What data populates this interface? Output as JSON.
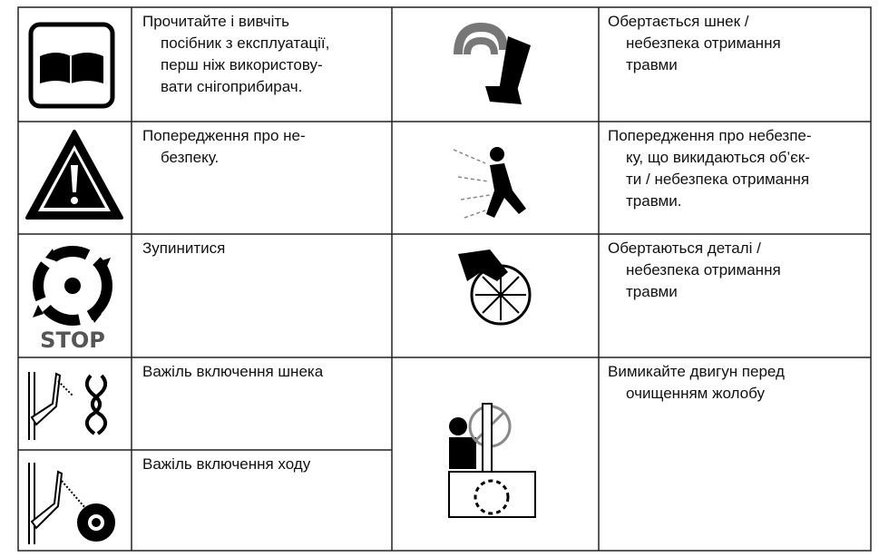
{
  "table": {
    "left_cells": [
      {
        "lines": [
          "Прочитайте і вивчіть",
          "посібник з експлуатації,",
          "перш ніж використову-",
          "вати снігоприбирач."
        ]
      },
      {
        "lines": [
          "Попередження про не-",
          "безпеку."
        ]
      },
      {
        "lines": [
          "Зупинитися"
        ]
      },
      {
        "lines": [
          "Важіль включення шнека"
        ]
      },
      {
        "lines": [
          "Важіль включення ходу"
        ]
      }
    ],
    "right_cells": [
      {
        "lines": [
          "Обертається шнек /",
          "небезпека отримання",
          "травми"
        ]
      },
      {
        "lines": [
          "Попередження про небезпе-",
          "ку, що викидаються об’єк-",
          "ти / небезпека отримання",
          "травми."
        ]
      },
      {
        "lines": [
          "Обертаються деталі /",
          "небезпека отримання",
          "травми"
        ]
      },
      {
        "lines": [
          "Вимикайте двигун перед",
          "очищенням жолобу"
        ]
      }
    ],
    "stop_icon_label": "STOP"
  }
}
